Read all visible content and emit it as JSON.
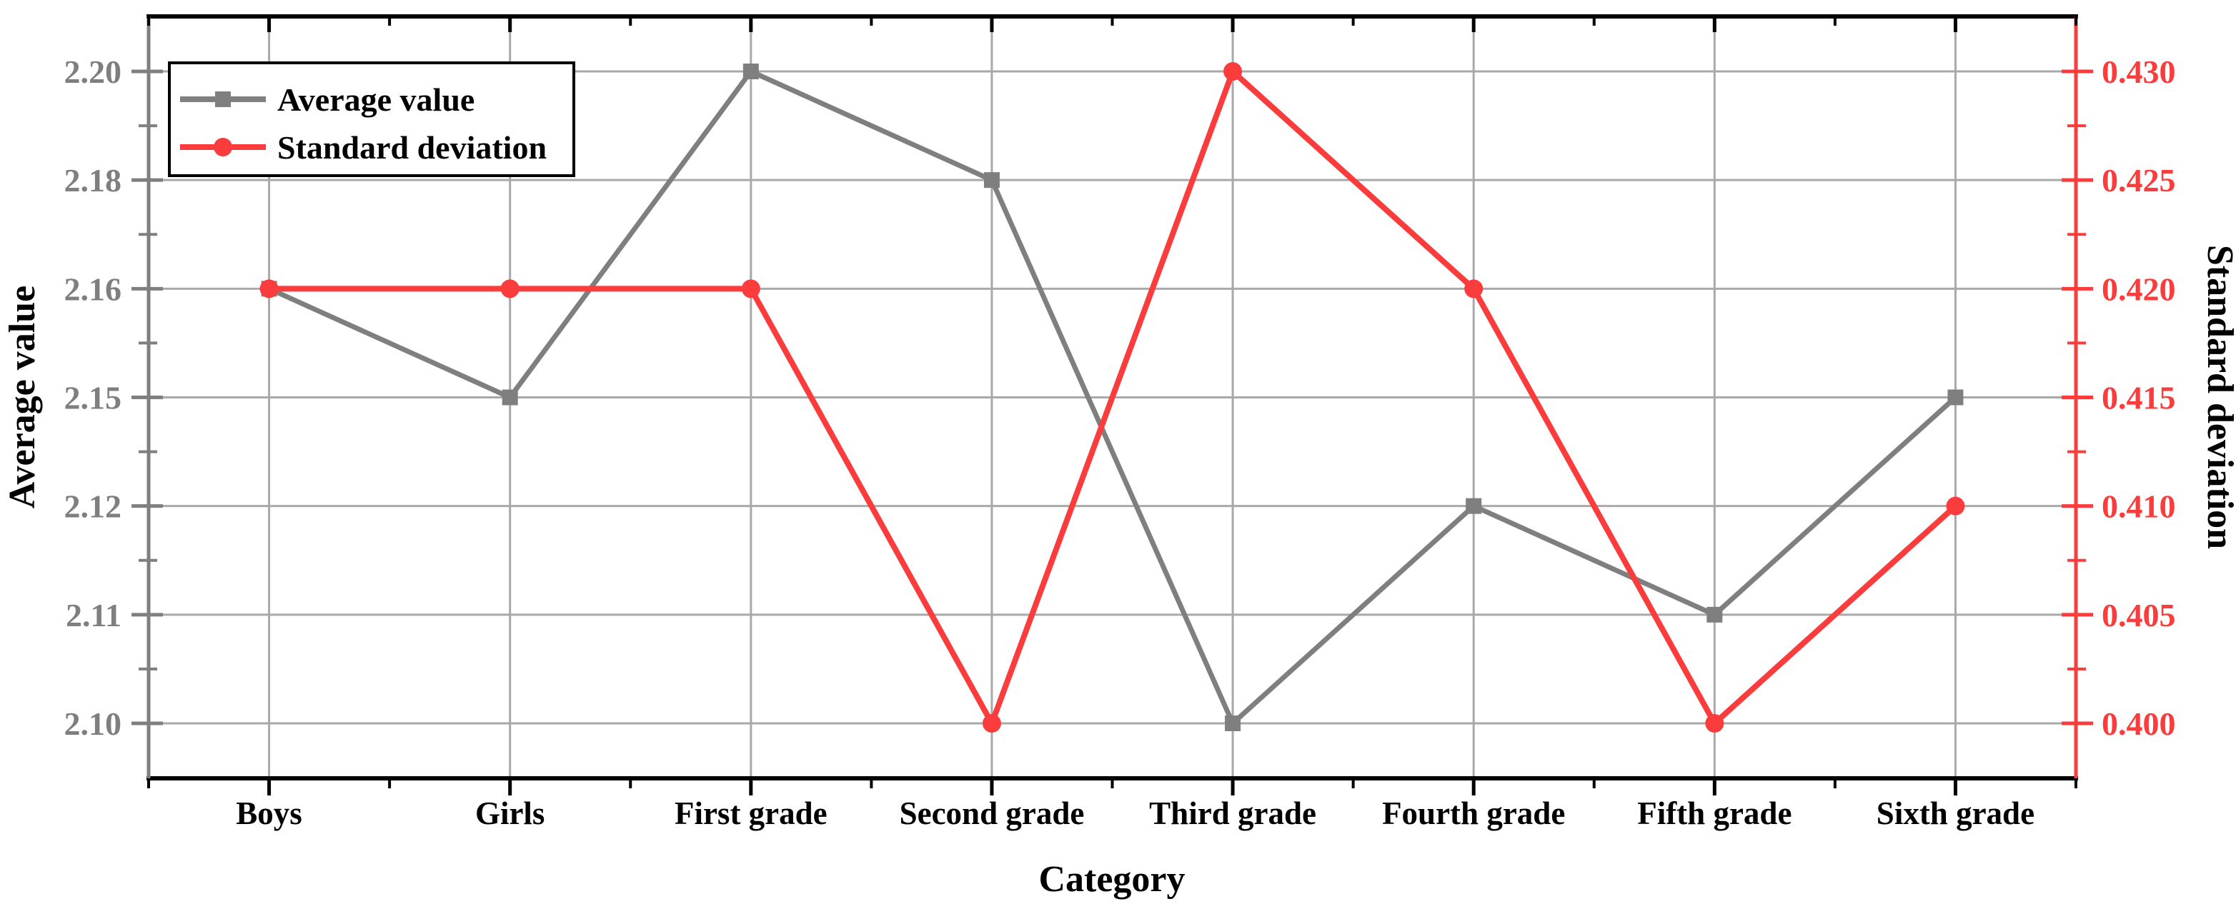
{
  "chart_data": {
    "type": "line",
    "title": "",
    "xlabel": "Category",
    "ylabel_left": "Average value",
    "ylabel_right": "Standard deviation",
    "categories": [
      "Boys",
      "Girls",
      "First grade",
      "Second grade",
      "Third grade",
      "Fourth grade",
      "Fifth grade",
      "Sixth grade"
    ],
    "left_axis": {
      "tick_labels": [
        "2.20",
        "2.18",
        "2.16",
        "2.15",
        "2.12",
        "2.11",
        "2.10"
      ],
      "note": "tick labels evenly spaced at data values, non-uniform numeric intervals"
    },
    "right_axis": {
      "tick_labels": [
        "0.430",
        "0.425",
        "0.420",
        "0.415",
        "0.410",
        "0.405",
        "0.400"
      ],
      "max": 0.43,
      "min": 0.4,
      "step": 0.005
    },
    "series": [
      {
        "name": "Average value",
        "axis": "left",
        "color": "#7f7f7f",
        "marker": "square",
        "values": [
          2.16,
          2.15,
          2.2,
          2.18,
          2.1,
          2.12,
          2.11,
          2.15
        ]
      },
      {
        "name": "Standard deviation",
        "axis": "right",
        "color": "#fa3c3c",
        "marker": "circle",
        "values": [
          0.42,
          0.42,
          0.42,
          0.4,
          0.43,
          0.42,
          0.4,
          0.41
        ]
      }
    ],
    "legend_position": "top-left",
    "grid": true,
    "grid_color": "#a9a9a9"
  }
}
